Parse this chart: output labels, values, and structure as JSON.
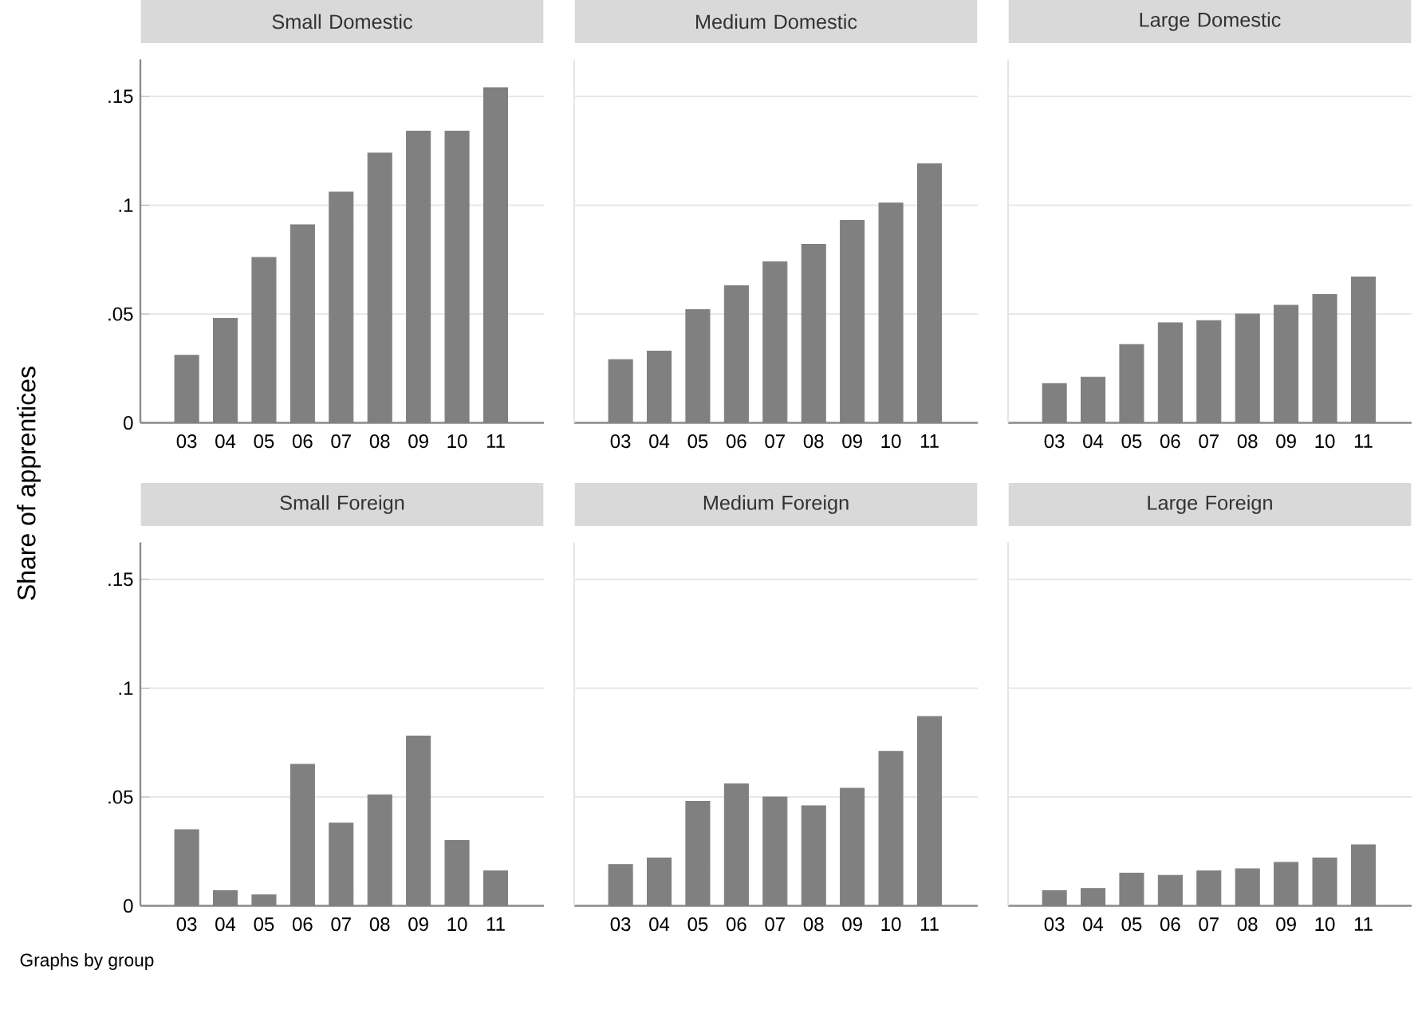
{
  "chart_data": [
    {
      "type": "bar",
      "title": "Small Domestic",
      "ylabel": "Share of apprentices",
      "categories": [
        "03",
        "04",
        "05",
        "06",
        "07",
        "08",
        "09",
        "10",
        "11"
      ],
      "values": [
        0.031,
        0.048,
        0.076,
        0.091,
        0.106,
        0.124,
        0.134,
        0.134,
        0.154
      ],
      "color": "#808080",
      "ylim": [
        0,
        0.167
      ],
      "yticks": [
        0,
        {
          "value": 0.05,
          "label": ".05"
        },
        {
          "value": 0.1,
          "label": ".1"
        },
        {
          "value": 0.15,
          "label": ".15"
        }
      ],
      "grid": "y"
    },
    {
      "type": "bar",
      "title": "Medium Domestic",
      "categories": [
        "03",
        "04",
        "05",
        "06",
        "07",
        "08",
        "09",
        "10",
        "11"
      ],
      "values": [
        0.029,
        0.033,
        0.052,
        0.063,
        0.074,
        0.082,
        0.093,
        0.101,
        0.119
      ],
      "color": "#808080",
      "ylim": [
        0,
        0.167
      ],
      "yticks": [
        {
          "value": 0,
          "label": null
        },
        {
          "value": 0.05,
          "label": null
        },
        {
          "value": 0.1,
          "label": null
        },
        {
          "value": 0.15,
          "label": null
        }
      ],
      "grid": "y",
      "tick_labels": "x"
    },
    {
      "type": "bar",
      "title": "Large Domestic",
      "categories": [
        "03",
        "04",
        "05",
        "06",
        "07",
        "08",
        "09",
        "10",
        "11"
      ],
      "values": [
        0.018,
        0.021,
        0.036,
        0.046,
        0.047,
        0.05,
        0.054,
        0.059,
        0.067
      ],
      "color": "#808080",
      "ylim": [
        0,
        0.167
      ],
      "yticks": [
        {
          "value": 0,
          "label": null
        },
        {
          "value": 0.05,
          "label": null
        },
        {
          "value": 0.1,
          "label": null
        },
        {
          "value": 0.15,
          "label": null
        }
      ],
      "grid": "y",
      "tick_labels": "x"
    },
    {
      "type": "bar",
      "title": "Small Foreign",
      "annotations": [
        "Graphs by group"
      ],
      "categories": [
        "03",
        "04",
        "05",
        "06",
        "07",
        "08",
        "09",
        "10",
        "11"
      ],
      "values": [
        0.035,
        0.007,
        0.005,
        0.065,
        0.038,
        0.051,
        0.078,
        0.03,
        0.016
      ],
      "color": "#808080",
      "ylim": [
        0,
        0.167
      ],
      "yticks": [
        0,
        {
          "value": 0.05,
          "label": ".05"
        },
        {
          "value": 0.1,
          "label": ".1"
        },
        {
          "value": 0.15,
          "label": ".15"
        }
      ],
      "grid": "y"
    },
    {
      "type": "bar",
      "title": "Medium Foreign",
      "categories": [
        "03",
        "04",
        "05",
        "06",
        "07",
        "08",
        "09",
        "10",
        "11"
      ],
      "values": [
        0.019,
        0.022,
        0.048,
        0.056,
        0.05,
        0.046,
        0.054,
        0.071,
        0.087
      ],
      "color": "#808080",
      "ylim": [
        0,
        0.167
      ],
      "yticks": [
        {
          "value": 0,
          "label": null
        },
        {
          "value": 0.05,
          "label": null
        },
        {
          "value": 0.1,
          "label": null
        },
        {
          "value": 0.15,
          "label": null
        }
      ],
      "grid": "y",
      "tick_labels": "x"
    },
    {
      "type": "bar",
      "title": "Large Foreign",
      "categories": [
        "03",
        "04",
        "05",
        "06",
        "07",
        "08",
        "09",
        "10",
        "11"
      ],
      "values": [
        0.007,
        0.008,
        0.015,
        0.014,
        0.016,
        0.017,
        0.02,
        0.022,
        0.028
      ],
      "color": "#808080",
      "ylim": [
        0,
        0.167
      ],
      "yticks": [
        {
          "value": 0,
          "label": null
        },
        {
          "value": 0.05,
          "label": null
        },
        {
          "value": 0.1,
          "label": null
        },
        {
          "value": 0.15,
          "label": null
        }
      ],
      "grid": "y",
      "tick_labels": "x"
    }
  ]
}
